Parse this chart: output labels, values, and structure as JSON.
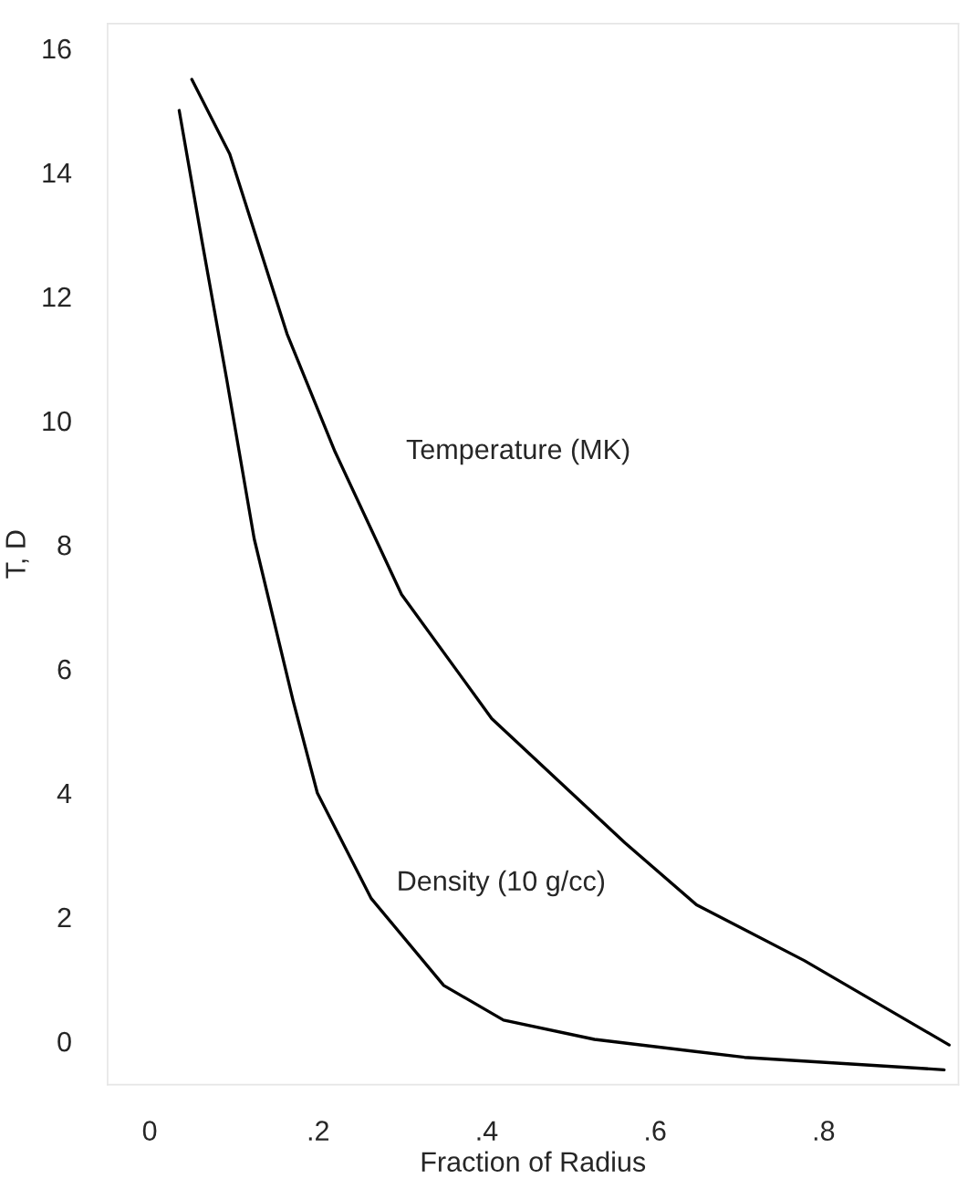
{
  "chart_data": {
    "type": "line",
    "xlabel": "Fraction of Radius",
    "ylabel": "T, D",
    "xlim": [
      -0.05,
      0.96
    ],
    "ylim": [
      -0.7,
      16.4
    ],
    "xticks": [
      0,
      {
        "value": 0.2,
        "label": ".2"
      },
      {
        "value": 0.4,
        "label": ".4"
      },
      {
        "value": 0.6,
        "label": ".6"
      },
      {
        "value": 0.8,
        "label": ".8"
      }
    ],
    "yticks": [
      0,
      2,
      4,
      6,
      8,
      10,
      12,
      14,
      16
    ],
    "grid": false,
    "legend": false,
    "marker": "none",
    "line_style": "solid",
    "series": [
      {
        "name": "Temperature (MK)",
        "color": "#000000",
        "x": [
          0.05,
          0.095,
          0.163,
          0.22,
          0.299,
          0.406,
          0.564,
          0.649,
          0.777,
          0.949
        ],
        "values": [
          15.5,
          14.3,
          11.4,
          9.5,
          7.2,
          5.2,
          3.2,
          2.2,
          1.3,
          -0.06
        ]
      },
      {
        "name": "Density (10 g/cc)",
        "color": "#000000",
        "x": [
          0.035,
          0.062,
          0.091,
          0.124,
          0.17,
          0.199,
          0.263,
          0.349,
          0.42,
          0.528,
          0.706,
          0.943
        ],
        "values": [
          15.0,
          12.9,
          10.7,
          8.1,
          5.5,
          4.0,
          2.3,
          0.9,
          0.34,
          0.03,
          -0.26,
          -0.46
        ]
      }
    ]
  }
}
